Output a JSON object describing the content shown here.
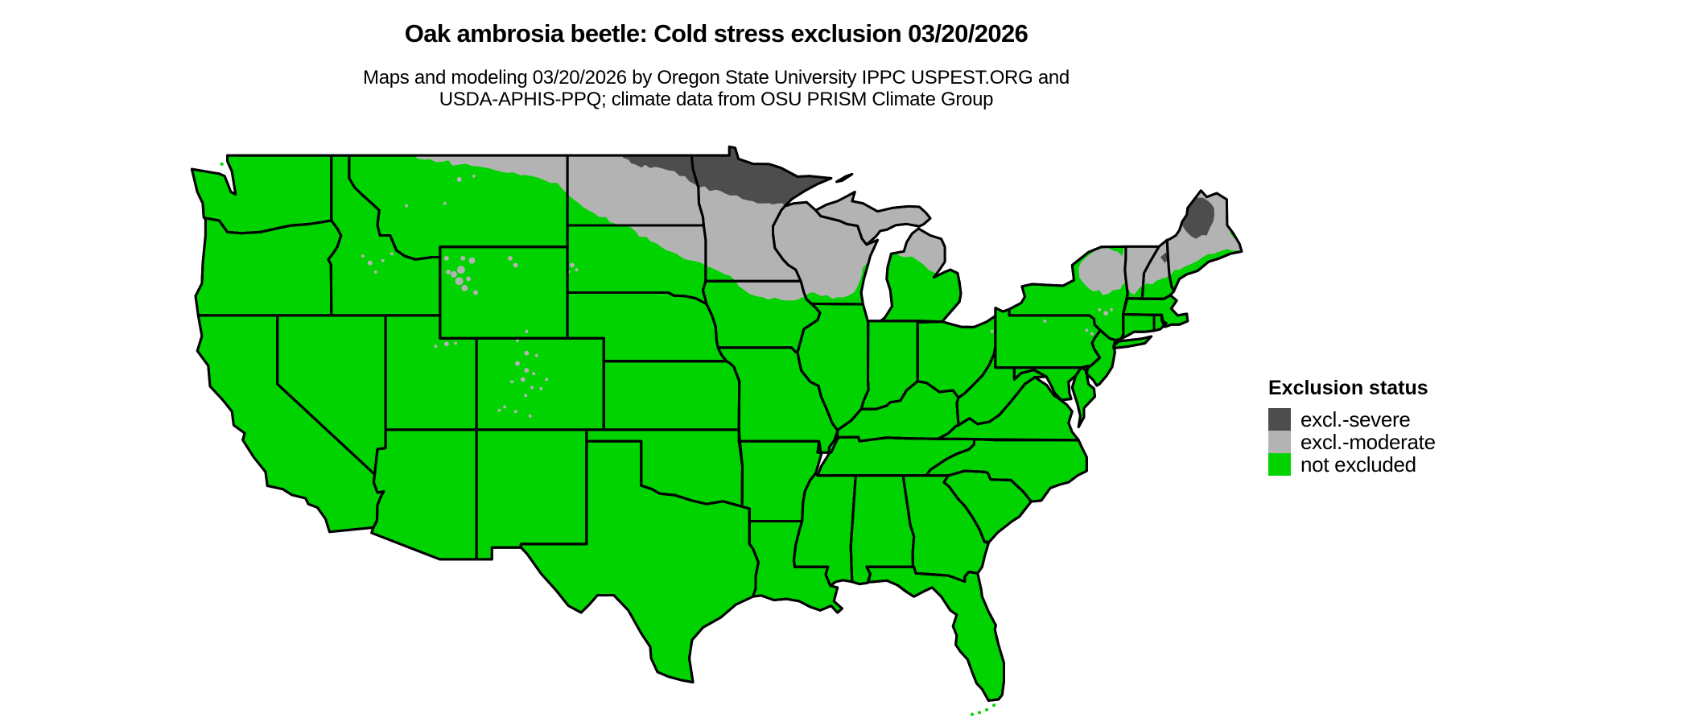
{
  "header": {
    "title": "Oak ambrosia beetle: Cold stress exclusion 03/20/2026",
    "subtitle_line1": "Maps and modeling 03/20/2026 by Oregon State University IPPC USPEST.ORG and",
    "subtitle_line2": "USDA-APHIS-PPQ; climate data from OSU PRISM Climate Group"
  },
  "legend": {
    "title": "Exclusion status",
    "items": [
      {
        "key": "severe",
        "label": "excl.-severe",
        "color": "#4d4d4d"
      },
      {
        "key": "moderate",
        "label": "excl.-moderate",
        "color": "#b3b3b3"
      },
      {
        "key": "not_excluded",
        "label": "not excluded",
        "color": "#00d300"
      }
    ]
  },
  "map": {
    "base_status": "not excluded",
    "border_color": "#000000",
    "water_color": "#ffffff",
    "severe_regions": [
      "northern North Dakota",
      "northern Minnesota",
      "north-central Maine",
      "White Mountains area (NH/VT border)"
    ],
    "moderate_regions": [
      "northeastern Montana",
      "most of North Dakota",
      "northeastern South Dakota",
      "most of Minnesota",
      "northern Iowa fringe",
      "most of Wisconsin",
      "Upper Peninsula and northern Lower Michigan",
      "Adirondacks and eastern upstate New York",
      "northern Vermont and New Hampshire",
      "most of Maine (except coastal fringe)",
      "Rocky Mountain high-elevation pockets (WY, CO, UT, ID, MT)",
      "Black Hills (SD)"
    ]
  }
}
